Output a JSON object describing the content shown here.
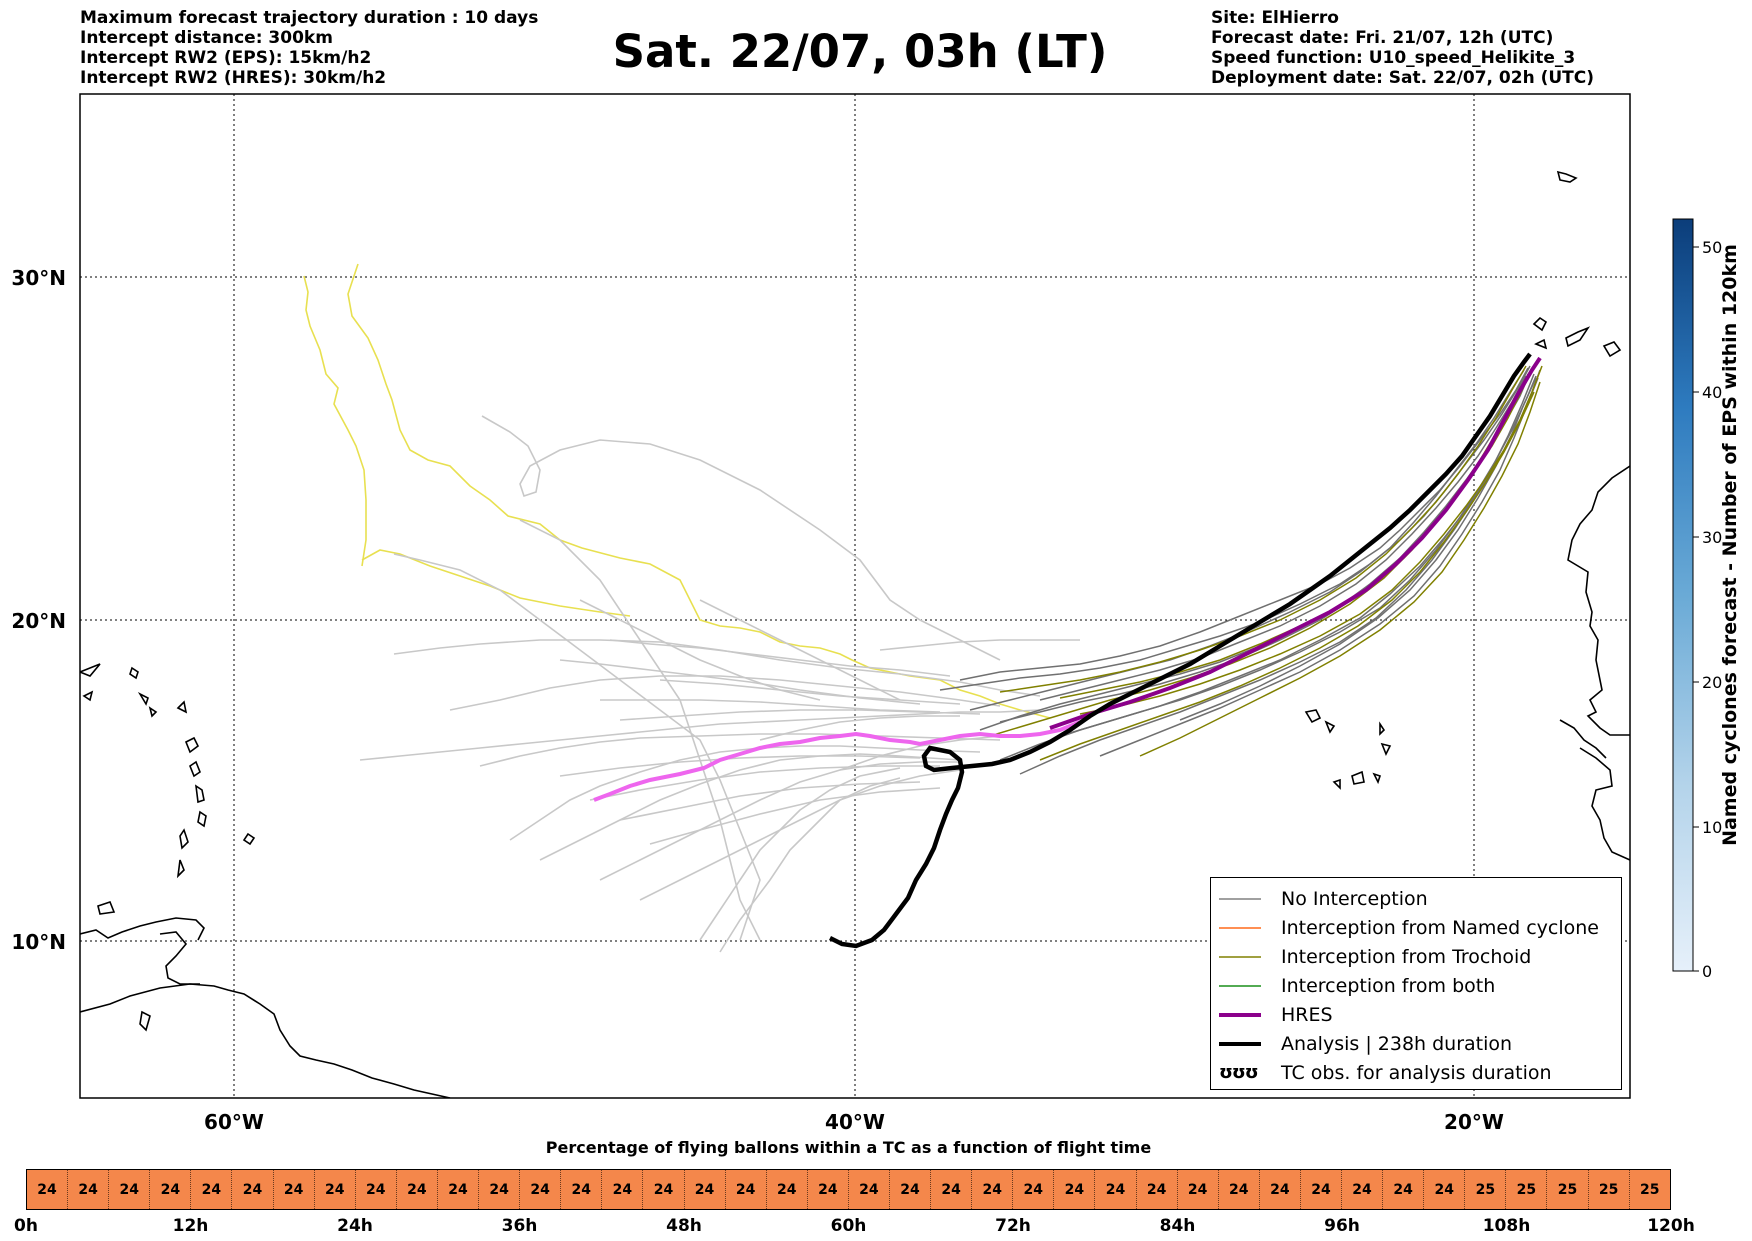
{
  "header": {
    "left": [
      "Maximum forecast trajectory duration : 10 days",
      "Intercept distance: 300km",
      "Intercept RW2 (EPS):  15km/h2",
      "Intercept RW2 (HRES): 30km/h2"
    ],
    "title": "Sat. 22/07, 03h (LT)",
    "right": [
      "Site: ElHierro",
      "Forecast date: Fri. 21/07, 12h (UTC)",
      "Speed function: U10_speed_Helikite_3",
      "Deployment date: Sat. 22/07, 02h (UTC)"
    ]
  },
  "map": {
    "lat_labels": [
      "30°N",
      "20°N",
      "10°N"
    ],
    "lon_labels": [
      "60°W",
      "40°W",
      "20°W"
    ],
    "colors": {
      "eps_no_interception": "#c8c8c8",
      "no_interception": "#707070",
      "trochoid": "#808000",
      "yellow_tracks": "#e8e050",
      "hres": "#8b008b",
      "hres_light": "#ee66ee",
      "analysis": "#000000",
      "coast": "#000000"
    }
  },
  "legend": {
    "items": [
      {
        "label": "No Interception",
        "color": "#808080",
        "style": "thin"
      },
      {
        "label": "Interception from Named cyclone",
        "color": "#ff6a1a",
        "style": "thin"
      },
      {
        "label": "Interception from Trochoid",
        "color": "#808000",
        "style": "thin"
      },
      {
        "label": "Interception from both",
        "color": "#1a8f1a",
        "style": "thin"
      },
      {
        "label": "HRES",
        "color": "#8b008b",
        "style": "thick"
      },
      {
        "label": "Analysis | 238h duration",
        "color": "#000000",
        "style": "thick"
      },
      {
        "label": "TC obs. for analysis duration",
        "color": "#000000",
        "style": "symbol",
        "symbol": "ʊʊʊ"
      }
    ]
  },
  "colorbar": {
    "title": "Named cyclones forecast - Number of EPS within 120km",
    "ticks": [
      "0",
      "10",
      "20",
      "30",
      "40",
      "50"
    ],
    "color_low": "#e6f0fa",
    "color_high": "#0b3d7a"
  },
  "bottom_bar": {
    "title": "Percentage of flying ballons within a TC as a function of flight time",
    "values": [
      24,
      24,
      24,
      24,
      24,
      24,
      24,
      24,
      24,
      24,
      24,
      24,
      24,
      24,
      24,
      24,
      24,
      24,
      24,
      24,
      24,
      24,
      24,
      24,
      24,
      24,
      24,
      24,
      24,
      24,
      24,
      24,
      24,
      24,
      24,
      25,
      25,
      25,
      25,
      25
    ],
    "ticks": [
      "0h",
      "12h",
      "24h",
      "36h",
      "48h",
      "60h",
      "72h",
      "84h",
      "96h",
      "108h",
      "120h"
    ],
    "cell_color": "#f4874b"
  }
}
